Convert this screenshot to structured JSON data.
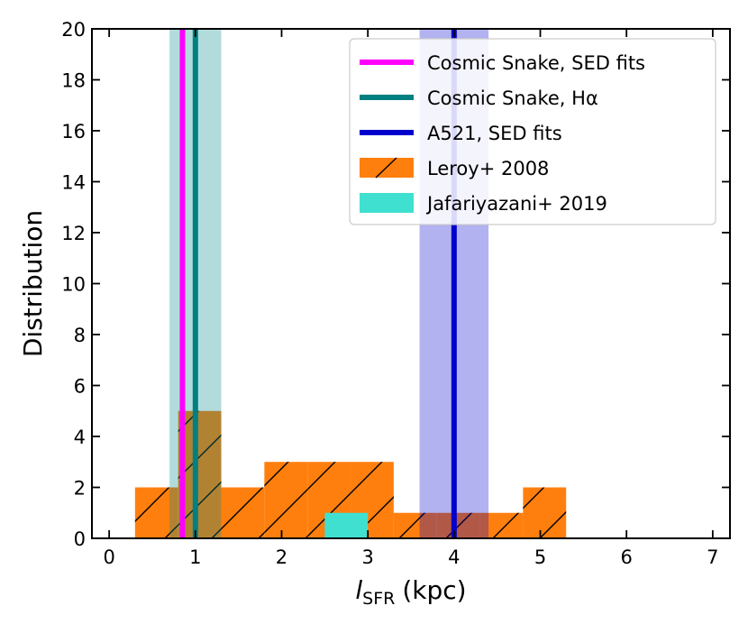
{
  "chart_data": {
    "type": "bar",
    "xlabel": "l",
    "xlabel_sub": "SFR",
    "xlabel_unit": "(kpc)",
    "ylabel": "Distribution",
    "xlim": [
      -0.2,
      7.2
    ],
    "ylim": [
      0,
      20
    ],
    "xticks": [
      0,
      1,
      2,
      3,
      4,
      5,
      6,
      7
    ],
    "yticks": [
      0,
      2,
      4,
      6,
      8,
      10,
      12,
      14,
      16,
      18,
      20
    ],
    "histograms": [
      {
        "name": "Leroy+ 2008",
        "color": "#ff7f0e",
        "hatch": "/",
        "bins": [
          {
            "x0": 0.3,
            "x1": 0.8,
            "count": 2
          },
          {
            "x0": 0.8,
            "x1": 1.3,
            "count": 5
          },
          {
            "x0": 1.3,
            "x1": 1.8,
            "count": 2
          },
          {
            "x0": 1.8,
            "x1": 2.3,
            "count": 3
          },
          {
            "x0": 2.3,
            "x1": 2.8,
            "count": 3
          },
          {
            "x0": 2.8,
            "x1": 3.3,
            "count": 3
          },
          {
            "x0": 3.3,
            "x1": 3.8,
            "count": 1
          },
          {
            "x0": 3.8,
            "x1": 4.3,
            "count": 1
          },
          {
            "x0": 4.3,
            "x1": 4.8,
            "count": 1
          },
          {
            "x0": 4.8,
            "x1": 5.3,
            "count": 2
          }
        ]
      },
      {
        "name": "Jafariyazani+ 2019",
        "color": "#40e0d0",
        "bins": [
          {
            "x0": 2.5,
            "x1": 3.0,
            "count": 1
          }
        ]
      }
    ],
    "vlines": [
      {
        "name": "Cosmic Snake, SED fits",
        "x": 0.85,
        "color": "#ff00ff"
      },
      {
        "name": "Cosmic Snake, Hα",
        "x": 1.0,
        "color": "#008080"
      },
      {
        "name": "A521, SED fits",
        "x": 4.0,
        "color": "#0000cd"
      }
    ],
    "bands": [
      {
        "x0": 0.7,
        "x1": 1.3,
        "color": "#008b8b",
        "opacity": 0.3
      },
      {
        "x0": 3.6,
        "x1": 4.4,
        "color": "#0000cd",
        "opacity": 0.3
      }
    ],
    "legend": {
      "position": "top-right",
      "entries": [
        {
          "label": "Cosmic Snake, SED fits",
          "kind": "line",
          "color": "#ff00ff"
        },
        {
          "label": "Cosmic Snake, Hα",
          "kind": "line",
          "color": "#008080"
        },
        {
          "label": "A521, SED fits",
          "kind": "line",
          "color": "#0000cd"
        },
        {
          "label": "Leroy+ 2008",
          "kind": "patch",
          "color": "#ff7f0e",
          "hatch": "/"
        },
        {
          "label": "Jafariyazani+ 2019",
          "kind": "patch",
          "color": "#40e0d0"
        }
      ]
    }
  }
}
